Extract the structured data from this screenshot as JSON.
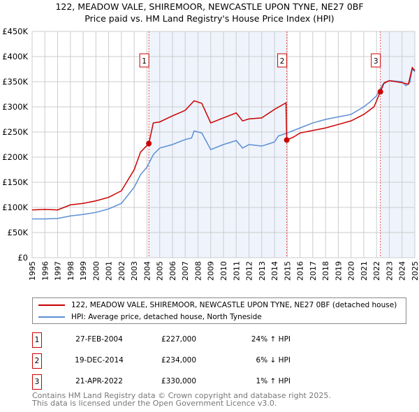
{
  "chart_data": {
    "type": "line",
    "title": "122, MEADOW VALE, SHIREMOOR, NEWCASTLE UPON TYNE, NE27 0BF",
    "subtitle": "Price paid vs. HM Land Registry's House Price Index (HPI)",
    "xlim": [
      1995,
      2025
    ],
    "ylim": [
      0,
      450000
    ],
    "y_ticks": [
      {
        "v": 0,
        "label": "£0"
      },
      {
        "v": 50000,
        "label": "£50K"
      },
      {
        "v": 100000,
        "label": "£100K"
      },
      {
        "v": 150000,
        "label": "£150K"
      },
      {
        "v": 200000,
        "label": "£200K"
      },
      {
        "v": 250000,
        "label": "£250K"
      },
      {
        "v": 300000,
        "label": "£300K"
      },
      {
        "v": 350000,
        "label": "£350K"
      },
      {
        "v": 400000,
        "label": "£400K"
      },
      {
        "v": 450000,
        "label": "£450K"
      }
    ],
    "x_ticks": [
      "1995",
      "1996",
      "1997",
      "1998",
      "1999",
      "2000",
      "2001",
      "2002",
      "2003",
      "2004",
      "2005",
      "2006",
      "2007",
      "2008",
      "2009",
      "2010",
      "2011",
      "2012",
      "2013",
      "2014",
      "2015",
      "2016",
      "2017",
      "2018",
      "2019",
      "2020",
      "2021",
      "2022",
      "2023",
      "2024",
      "2025"
    ],
    "grid": true,
    "series": [
      {
        "name": "122, MEADOW VALE, SHIREMOOR, NEWCASTLE UPON TYNE, NE27 0BF (detached house)",
        "color": "#cc0000",
        "x": [
          1995,
          1996,
          1997,
          1998,
          1999,
          2000,
          2001,
          2002,
          2003,
          2003.5,
          2004.15,
          2004.5,
          2005,
          2006,
          2007,
          2007.7,
          2008.3,
          2009,
          2010,
          2011,
          2011.5,
          2012,
          2013,
          2014,
          2014.9,
          2014.96,
          2015.5,
          2016,
          2017,
          2018,
          2019,
          2020,
          2021,
          2021.8,
          2022.3,
          2022.6,
          2023,
          2024,
          2024.5,
          2024.8,
          2025
        ],
        "y": [
          95000,
          96000,
          95000,
          105000,
          108000,
          113000,
          120000,
          133000,
          175000,
          210000,
          227000,
          268000,
          270000,
          282000,
          293000,
          312000,
          307000,
          268000,
          278000,
          288000,
          272000,
          276000,
          278000,
          295000,
          308000,
          234000,
          240000,
          248000,
          253000,
          258000,
          265000,
          272000,
          285000,
          300000,
          330000,
          348000,
          352000,
          348000,
          345000,
          378000,
          372000
        ]
      },
      {
        "name": "HPI: Average price, detached house, North Tyneside",
        "color": "#5b8fd4",
        "x": [
          1995,
          1996,
          1997,
          1998,
          1999,
          2000,
          2001,
          2002,
          2003,
          2003.5,
          2004,
          2004.5,
          2005,
          2006,
          2007,
          2007.5,
          2007.7,
          2008.3,
          2009,
          2010,
          2011,
          2011.5,
          2012,
          2013,
          2014,
          2014.3,
          2015,
          2016,
          2017,
          2018,
          2019,
          2020,
          2021,
          2021.5,
          2022,
          2022.5,
          2023,
          2024,
          2024.3,
          2024.6,
          2024.8,
          2025
        ],
        "y": [
          77000,
          77000,
          78000,
          83000,
          86000,
          90000,
          97000,
          108000,
          140000,
          165000,
          180000,
          205000,
          218000,
          225000,
          235000,
          238000,
          252000,
          248000,
          215000,
          225000,
          233000,
          218000,
          225000,
          222000,
          230000,
          242000,
          248000,
          258000,
          268000,
          275000,
          280000,
          285000,
          300000,
          310000,
          322000,
          345000,
          352000,
          350000,
          342000,
          348000,
          375000,
          370000
        ]
      }
    ],
    "shaded_ranges": [
      [
        2004.15,
        2014.96
      ],
      [
        2022.3,
        2025
      ]
    ],
    "sales": [
      {
        "label": "1",
        "x": 2004.15,
        "y": 227000
      },
      {
        "label": "2",
        "x": 2014.96,
        "y": 234000
      },
      {
        "label": "3",
        "x": 2022.3,
        "y": 330000
      }
    ],
    "legend": "below"
  },
  "title_line1": "122, MEADOW VALE, SHIREMOOR, NEWCASTLE UPON TYNE, NE27 0BF",
  "title_line2": "Price paid vs. HM Land Registry's House Price Index (HPI)",
  "legend": {
    "red": "122, MEADOW VALE, SHIREMOOR, NEWCASTLE UPON TYNE, NE27 0BF (detached house)",
    "blue": "HPI: Average price, detached house, North Tyneside"
  },
  "transactions": [
    {
      "num": "1",
      "date": "27-FEB-2004",
      "price": "£227,000",
      "delta": "24% ↑ HPI"
    },
    {
      "num": "2",
      "date": "19-DEC-2014",
      "price": "£234,000",
      "delta": "6% ↓ HPI"
    },
    {
      "num": "3",
      "date": "21-APR-2022",
      "price": "£330,000",
      "delta": "1% ↑ HPI"
    }
  ],
  "footer": {
    "line1": "Contains HM Land Registry data © Crown copyright and database right 2025.",
    "line2": "This data is licensed under the Open Government Licence v3.0."
  }
}
